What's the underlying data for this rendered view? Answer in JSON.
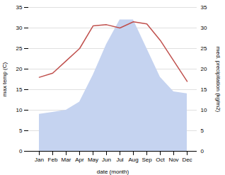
{
  "chart_data": {
    "type": "line",
    "categories": [
      "Jan",
      "Feb",
      "Mar",
      "Apr",
      "May",
      "Jun",
      "Jul",
      "Aug",
      "Sep",
      "Oct",
      "Nov",
      "Dec"
    ],
    "series": [
      {
        "type": "area",
        "color": "#c5d3f0",
        "axis": "y2",
        "values": [
          9,
          9.5,
          10,
          12,
          18.5,
          26,
          32,
          32,
          25,
          18,
          14.5,
          14
        ]
      },
      {
        "type": "line",
        "color": "#c0504d",
        "values": [
          18,
          19,
          22,
          25,
          30.5,
          30.8,
          30,
          31.5,
          31,
          27,
          22,
          17
        ]
      }
    ],
    "xlabel": "date (month)",
    "ylabel": "max temp (C)",
    "y2label": "med. precipitation (kg/m2)",
    "ylim": [
      0,
      35
    ],
    "yticks": [
      0,
      5,
      10,
      15,
      20,
      25,
      30,
      35
    ],
    "y2lim": [
      0,
      35
    ],
    "y2ticks": [
      0,
      5,
      10,
      15,
      20,
      25,
      30,
      35
    ],
    "grid": true
  }
}
